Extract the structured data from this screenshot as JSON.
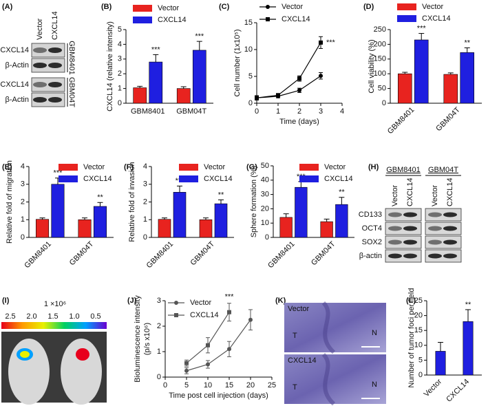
{
  "chart_data": [
    {
      "type": "bar",
      "panel": "(B)",
      "categories": [
        "GBM8401",
        "GBM04T"
      ],
      "ylabel": "CXCL14 (relative intensity)",
      "ylim": [
        0,
        5
      ],
      "yticks": [
        0,
        1,
        2,
        3,
        4,
        5
      ],
      "legend": "upper left",
      "series": [
        {
          "name": "Vector",
          "color": "#e8231f",
          "values": [
            1.05,
            1.0
          ],
          "errors": [
            0.1,
            0.12
          ],
          "annotations": [
            null,
            null
          ]
        },
        {
          "name": "CXCL14",
          "color": "#1f1fe0",
          "values": [
            2.8,
            3.6
          ],
          "errors": [
            0.5,
            0.6
          ],
          "annotations": [
            "***",
            "***"
          ]
        }
      ]
    },
    {
      "type": "line",
      "panel": "(C)",
      "x": [
        0,
        1,
        2,
        3
      ],
      "xlabel": "Time (days)",
      "ylabel": "Cell number (1x10⁵)",
      "xlim": [
        0,
        4
      ],
      "xticks": [
        0,
        1,
        2,
        3,
        4
      ],
      "ylim": [
        0,
        15
      ],
      "yticks": [
        0,
        5,
        10,
        15
      ],
      "legend": "upper left",
      "series": [
        {
          "name": "Vector",
          "color": "#000000",
          "marker": "circle",
          "values": [
            1.0,
            1.3,
            2.4,
            5.1
          ],
          "errors": [
            0.4,
            0.3,
            0.4,
            0.6
          ],
          "annotations": [
            null,
            null,
            null,
            null
          ]
        },
        {
          "name": "CXCL14",
          "color": "#000000",
          "marker": "square",
          "values": [
            1.0,
            1.5,
            4.6,
            11.3
          ],
          "errors": [
            0.4,
            0.3,
            0.5,
            1.1
          ],
          "annotations": [
            null,
            null,
            null,
            "***"
          ]
        }
      ]
    },
    {
      "type": "bar",
      "panel": "(D)",
      "categories": [
        "GBM8401",
        "GBM04T"
      ],
      "ylabel": "Cell viability (%)",
      "ylim": [
        0,
        250
      ],
      "yticks": [
        0,
        50,
        100,
        150,
        200,
        250
      ],
      "legend": "upper left",
      "series": [
        {
          "name": "Vector",
          "color": "#e8231f",
          "values": [
            100,
            98
          ],
          "errors": [
            5,
            5
          ],
          "annotations": [
            null,
            null
          ]
        },
        {
          "name": "CXCL14",
          "color": "#1f1fe0",
          "values": [
            215,
            172
          ],
          "errors": [
            22,
            16
          ],
          "annotations": [
            "***",
            "**"
          ]
        }
      ]
    },
    {
      "type": "bar",
      "panel": "(E)",
      "categories": [
        "GBM8401",
        "GBM04T"
      ],
      "ylabel": "Relative fold of migration",
      "ylim": [
        0,
        4
      ],
      "yticks": [
        0,
        1,
        2,
        3,
        4
      ],
      "legend": "upper right",
      "series": [
        {
          "name": "Vector",
          "color": "#e8231f",
          "values": [
            1.02,
            1.0
          ],
          "errors": [
            0.08,
            0.1
          ],
          "annotations": [
            null,
            null
          ]
        },
        {
          "name": "CXCL14",
          "color": "#1f1fe0",
          "values": [
            3.0,
            1.75
          ],
          "errors": [
            0.35,
            0.22
          ],
          "annotations": [
            "***",
            "**"
          ]
        }
      ]
    },
    {
      "type": "bar",
      "panel": "(F)",
      "categories": [
        "GBM8401",
        "GBM04T"
      ],
      "ylabel": "Relative fold of invasion",
      "ylim": [
        0,
        4
      ],
      "yticks": [
        0,
        1,
        2,
        3,
        4
      ],
      "legend": "upper right",
      "series": [
        {
          "name": "Vector",
          "color": "#e8231f",
          "values": [
            1.02,
            1.0
          ],
          "errors": [
            0.08,
            0.1
          ],
          "annotations": [
            null,
            null
          ]
        },
        {
          "name": "CXCL14",
          "color": "#1f1fe0",
          "values": [
            2.55,
            1.9
          ],
          "errors": [
            0.35,
            0.22
          ],
          "annotations": [
            "***",
            "**"
          ]
        }
      ]
    },
    {
      "type": "bar",
      "panel": "(G)",
      "categories": [
        "GBM8401",
        "GBM04T"
      ],
      "ylabel": "Sphere formation (%)",
      "ylim": [
        0,
        50
      ],
      "yticks": [
        0,
        10,
        20,
        30,
        40,
        50
      ],
      "legend": "upper right",
      "series": [
        {
          "name": "Vector",
          "color": "#e8231f",
          "values": [
            14,
            11
          ],
          "errors": [
            2.5,
            1.8
          ],
          "annotations": [
            null,
            null
          ]
        },
        {
          "name": "CXCL14",
          "color": "#1f1fe0",
          "values": [
            35,
            23
          ],
          "errors": [
            4,
            5
          ],
          "annotations": [
            "***",
            "**"
          ]
        }
      ]
    },
    {
      "type": "line",
      "panel": "(J)",
      "x": [
        5,
        10,
        15,
        20
      ],
      "xlabel": "Time post cell injection (days)",
      "ylabel": [
        "Bioluminescence intensity",
        "(p/s x10⁶)"
      ],
      "xlim": [
        0,
        25
      ],
      "xticks": [
        0,
        5,
        10,
        15,
        20,
        25
      ],
      "ylim": [
        0,
        3
      ],
      "yticks": [
        0,
        1,
        2,
        3
      ],
      "legend": "upper left",
      "series": [
        {
          "name": "Vector",
          "color": "#555555",
          "marker": "circle",
          "values": [
            0.25,
            0.5,
            1.1,
            2.25
          ],
          "errors": [
            0.12,
            0.15,
            0.3,
            0.4
          ],
          "annotations": [
            null,
            null,
            null,
            null
          ]
        },
        {
          "name": "CXCL14",
          "color": "#555555",
          "marker": "square",
          "values": [
            0.55,
            1.25,
            2.55,
            null
          ],
          "errors": [
            0.12,
            0.3,
            0.35,
            null
          ],
          "annotations": [
            null,
            null,
            "***",
            null
          ]
        }
      ]
    },
    {
      "type": "bar",
      "panel": "(L)",
      "categories": [
        "Vector",
        "CXCL14"
      ],
      "ylabel": "Number of tumor foci per field",
      "ylim": [
        0,
        25
      ],
      "yticks": [
        0,
        5,
        10,
        15,
        20,
        25
      ],
      "color": "#1f1fe0",
      "values": [
        8,
        18
      ],
      "errors": [
        3,
        4
      ],
      "annotations": [
        null,
        "**"
      ]
    }
  ],
  "blot_a": {
    "panel": "(A)",
    "lanes": [
      "Vector",
      "CXCL14"
    ],
    "groups": [
      {
        "cell_line": "GBM8401",
        "rows": [
          "CXCL14",
          "β-Actin"
        ]
      },
      {
        "cell_line": "GBM04T",
        "rows": [
          "CXCL14",
          "β-Actin"
        ]
      }
    ]
  },
  "blot_h": {
    "panel": "(H)",
    "groups": [
      {
        "cell_line": "GBM8401",
        "lanes": [
          "Vector",
          "CXCL14"
        ]
      },
      {
        "cell_line": "GBM04T",
        "lanes": [
          "Vector",
          "CXCL14"
        ]
      }
    ],
    "rows": [
      "CD133",
      "OCT4",
      "SOX2",
      "β-actin"
    ]
  },
  "imaging_i": {
    "panel": "(I)",
    "scale_label": "1 ×10⁶",
    "scale_ticks": [
      "2.5",
      "2.0",
      "1.5",
      "1.0",
      "0.5"
    ]
  },
  "histology_k": {
    "panel": "(K)",
    "images": [
      {
        "label": "Vector",
        "regions": [
          "T",
          "N"
        ]
      },
      {
        "label": "CXCL14",
        "regions": [
          "T",
          "N"
        ]
      }
    ]
  }
}
